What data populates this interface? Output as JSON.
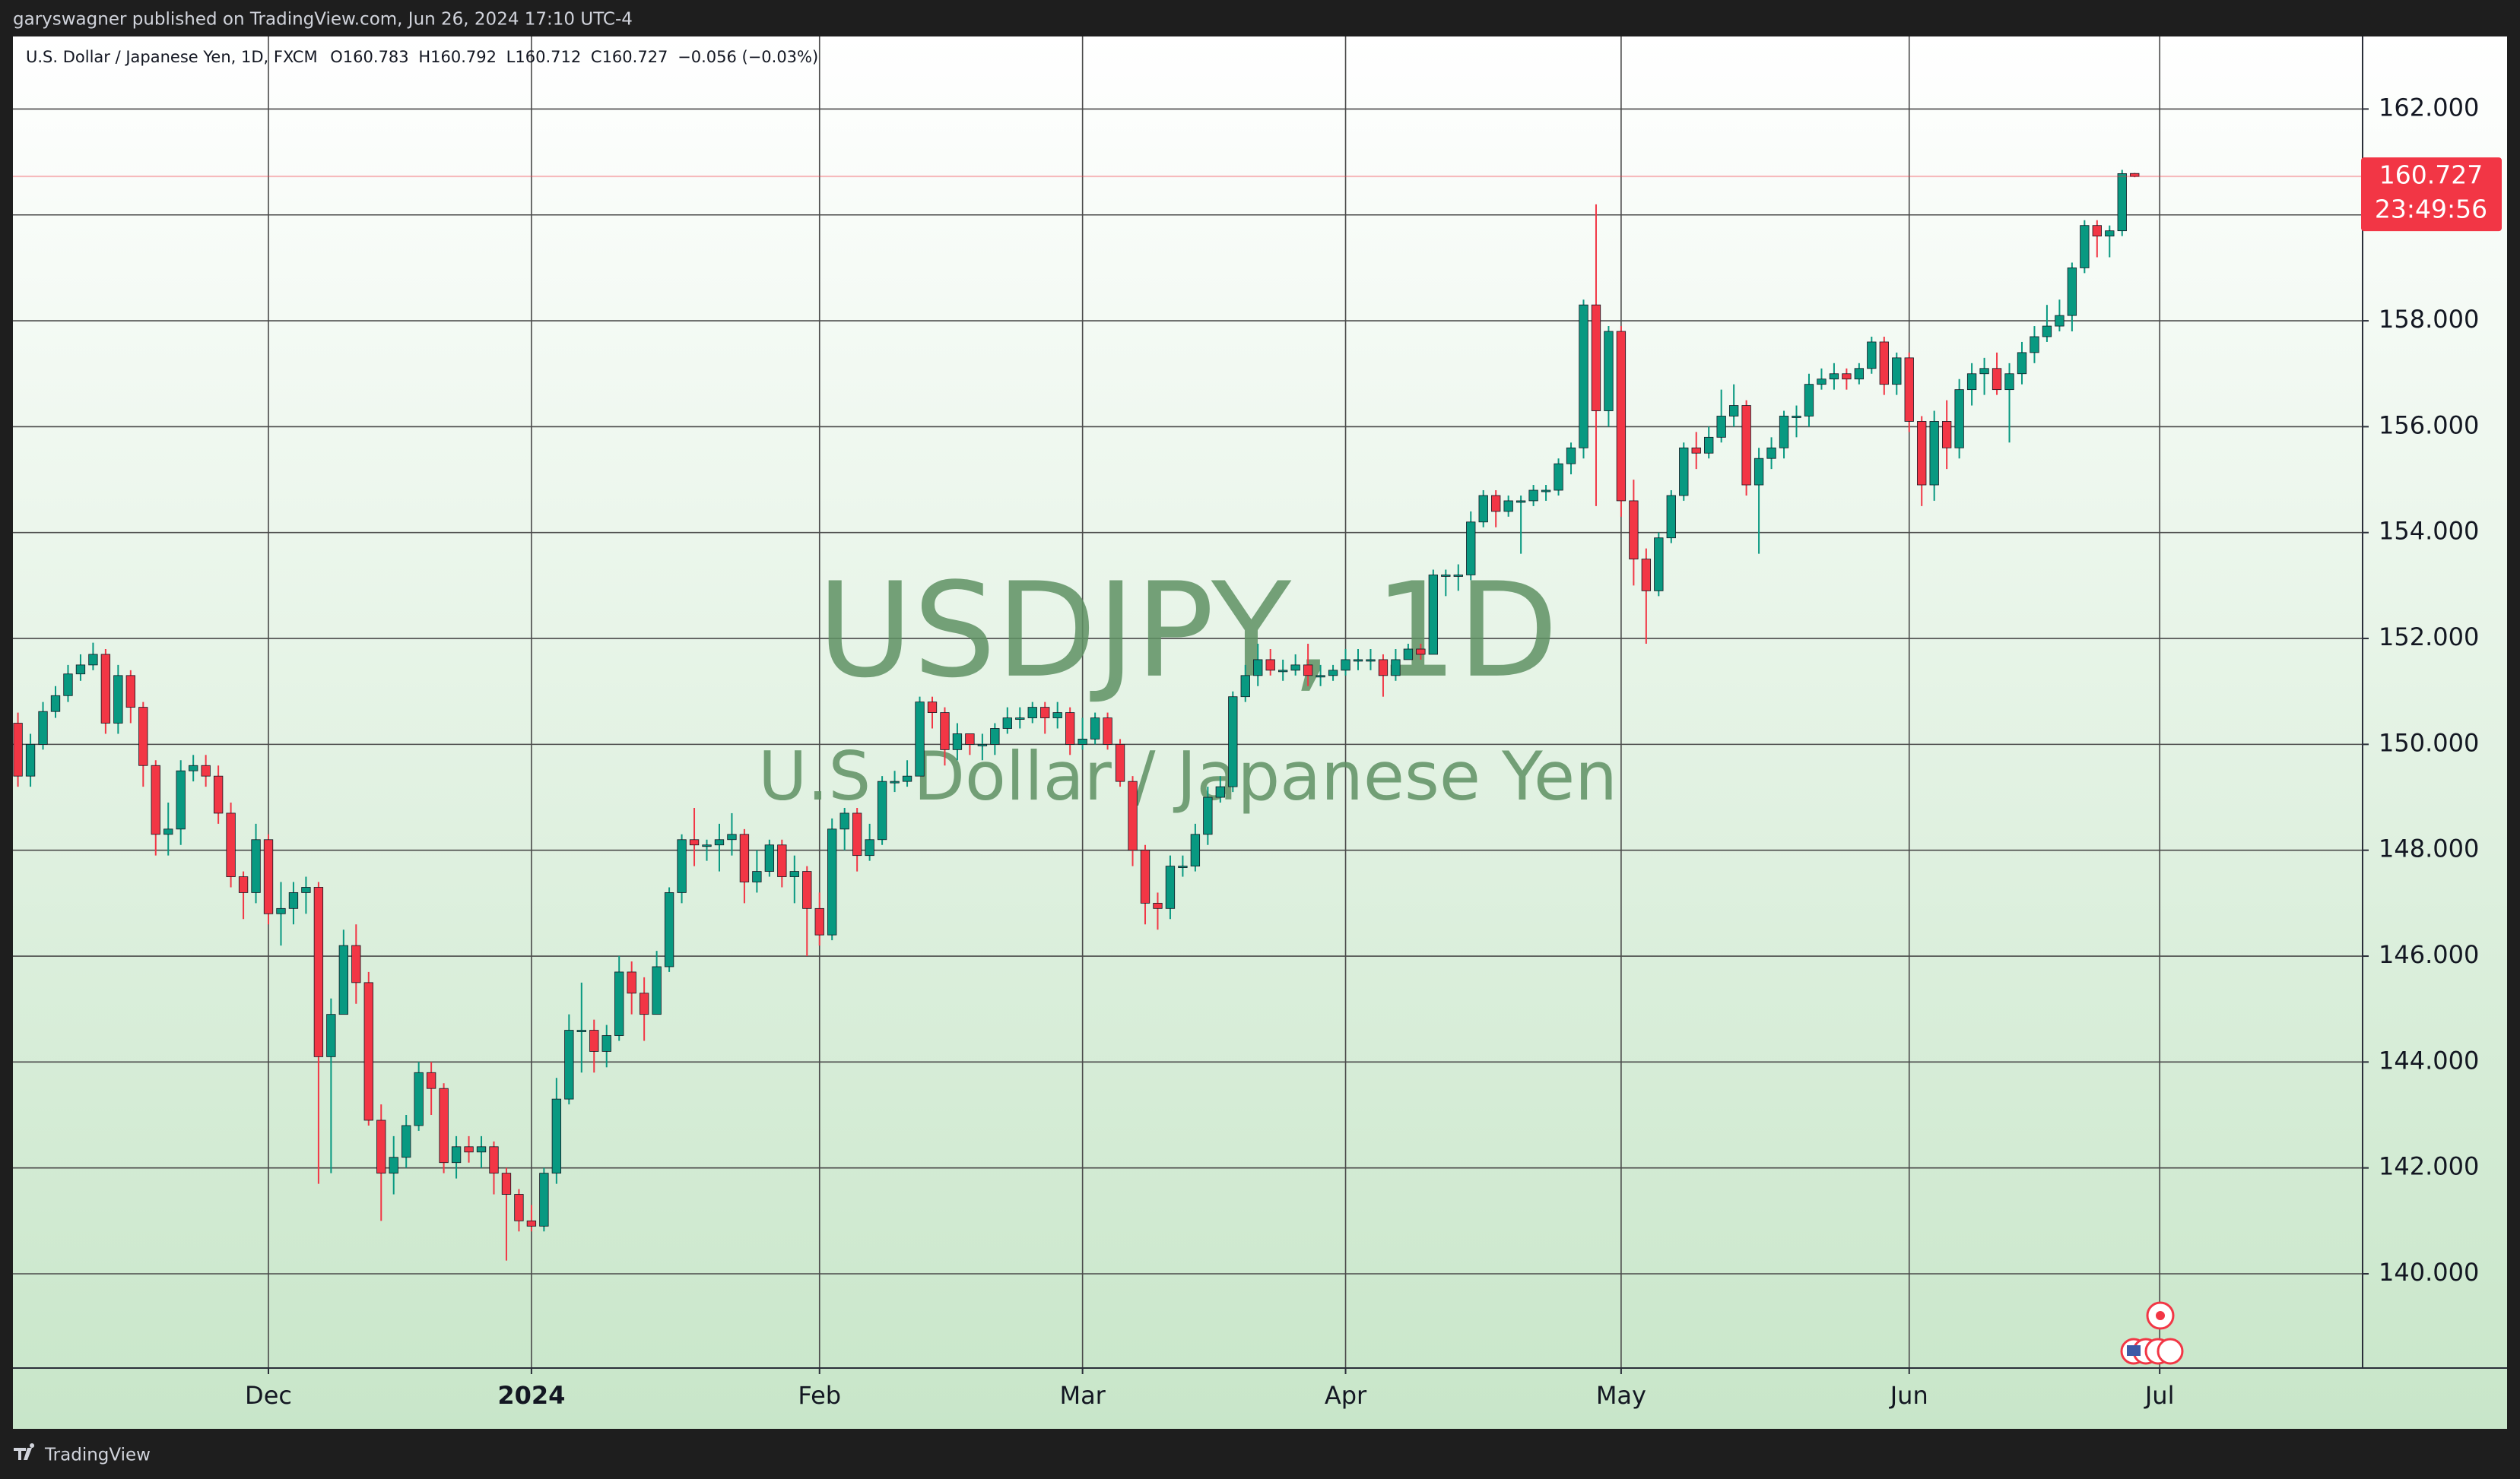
{
  "publisher_line": "garyswagner published on TradingView.com, Jun 26, 2024 17:10 UTC-4",
  "brand": "TradingView",
  "chart_data": {
    "type": "candlestick",
    "header": "U.S. Dollar / Japanese Yen, 1D, FXCM",
    "header_values": [
      "O160.783",
      "H160.792",
      "L160.712",
      "C160.727",
      "−0.056 (−0.03%)"
    ],
    "watermark_symbol": "USDJPY, 1D",
    "watermark_description": "U.S. Dollar /  Japanese Yen",
    "countdown": "23:49:56",
    "up_color": "#089981",
    "down_color": "#f23645",
    "grid": true,
    "ylim": [
      138.22,
      163.37
    ],
    "yticks": [
      {
        "value": 140,
        "label": "140.000"
      },
      {
        "value": 142,
        "label": "142.000"
      },
      {
        "value": 144,
        "label": "144.000"
      },
      {
        "value": 146,
        "label": "146.000"
      },
      {
        "value": 148,
        "label": "148.000"
      },
      {
        "value": 150,
        "label": "150.000"
      },
      {
        "value": 152,
        "label": "152.000"
      },
      {
        "value": 154,
        "label": "154.000"
      },
      {
        "value": 156,
        "label": "156.000"
      },
      {
        "value": 158,
        "label": "158.000"
      },
      {
        "value": 160,
        "label": "160.000"
      },
      {
        "value": 162,
        "label": "162.000"
      }
    ],
    "xlim": [
      -0.4,
      187.2
    ],
    "xticks": [
      {
        "value": 20,
        "label": "Dec"
      },
      {
        "value": 41,
        "label": "2024"
      },
      {
        "value": 64,
        "label": "Feb"
      },
      {
        "value": 85,
        "label": "Mar"
      },
      {
        "value": 106,
        "label": "Apr"
      },
      {
        "value": 128,
        "label": "May"
      },
      {
        "value": 151,
        "label": "Jun"
      },
      {
        "value": 171,
        "label": "Jul"
      }
    ],
    "open": [
      150.4,
      149.4,
      150,
      150.62,
      150.92,
      151.33,
      151.5,
      151.7,
      150.4,
      151.3,
      150.7,
      149.6,
      148.3,
      148.4,
      149.5,
      149.6,
      149.4,
      148.7,
      147.5,
      147.2,
      148.2,
      146.8,
      146.9,
      147.2,
      147.3,
      144.1,
      144.9,
      146.2,
      145.5,
      142.9,
      141.9,
      142.2,
      142.8,
      143.8,
      143.5,
      142.1,
      142.4,
      142.3,
      142.4,
      141.9,
      141.5,
      141,
      140.9,
      141.9,
      143.3,
      144.6,
      144.6,
      144.2,
      144.5,
      145.7,
      145.3,
      144.9,
      145.8,
      147.2,
      148.2,
      148.1,
      148.1,
      148.2,
      148.3,
      147.4,
      147.6,
      148.1,
      147.5,
      147.6,
      146.9,
      146.4,
      148.4,
      148.7,
      147.9,
      148.2,
      149.3,
      149.3,
      149.4,
      150.8,
      150.6,
      149.9,
      150.2,
      150,
      150,
      150.3,
      150.5,
      150.5,
      150.7,
      150.5,
      150.6,
      150,
      150.1,
      150.5,
      150,
      149.3,
      148,
      147,
      146.9,
      147.7,
      147.7,
      148.3,
      149,
      149.2,
      150.9,
      151.3,
      151.6,
      151.4,
      151.4,
      151.5,
      151.3,
      151.3,
      151.4,
      151.6,
      151.6,
      151.6,
      151.3,
      151.6,
      151.8,
      151.7,
      153.2,
      153.2,
      153.2,
      154.2,
      154.7,
      154.4,
      154.6,
      154.6,
      154.8,
      154.8,
      155.3,
      155.6,
      158.3,
      156.3,
      157.8,
      154.6,
      153.5,
      152.9,
      153.9,
      154.7,
      155.6,
      155.5,
      155.8,
      156.2,
      156.4,
      154.9,
      155.4,
      155.6,
      156.2,
      156.2,
      156.8,
      156.9,
      157,
      156.9,
      157.1,
      157.6,
      156.8,
      157.3,
      156.1,
      154.9,
      156.1,
      155.6,
      156.7,
      157,
      157.1,
      156.7,
      157,
      157.4,
      157.7,
      157.9,
      158.1,
      159,
      159.8,
      159.6,
      159.7,
      160.783
    ],
    "high": [
      150.6,
      150.2,
      150.8,
      151.1,
      151.5,
      151.7,
      151.92,
      151.8,
      151.5,
      151.4,
      150.8,
      149.7,
      148.9,
      149.7,
      149.8,
      149.8,
      149.6,
      148.9,
      147.6,
      148.5,
      148.3,
      147.4,
      147.4,
      147.5,
      147.4,
      145.2,
      146.5,
      146.6,
      145.7,
      143.2,
      142.6,
      143,
      144,
      144,
      143.6,
      142.6,
      142.6,
      142.6,
      142.5,
      142,
      141.6,
      141.3,
      142,
      143.7,
      144.9,
      145.5,
      144.8,
      144.7,
      146,
      145.9,
      145.6,
      146.1,
      147.3,
      148.3,
      148.8,
      148.2,
      148.5,
      148.7,
      148.4,
      148,
      148.2,
      148.2,
      147.9,
      147.7,
      147.2,
      148.6,
      148.8,
      148.8,
      148.5,
      149.4,
      149.5,
      149.7,
      150.9,
      150.9,
      150.7,
      150.4,
      150.2,
      150.2,
      150.4,
      150.7,
      150.7,
      150.8,
      150.8,
      150.8,
      150.7,
      150.5,
      150.6,
      150.6,
      150.1,
      149.4,
      148.1,
      147.2,
      147.9,
      147.9,
      148.5,
      149.2,
      149.4,
      151,
      151.5,
      151.9,
      151.8,
      151.6,
      151.7,
      151.9,
      151.5,
      151.5,
      151.8,
      151.8,
      151.8,
      151.7,
      151.8,
      151.9,
      151.9,
      153.3,
      153.3,
      153.4,
      154.4,
      154.8,
      154.8,
      154.7,
      154.7,
      154.9,
      154.9,
      155.4,
      155.7,
      158.4,
      160.2,
      157.9,
      157.9,
      155,
      153.7,
      154,
      154.8,
      155.7,
      155.9,
      156,
      156.7,
      156.8,
      156.5,
      155.6,
      155.8,
      156.3,
      156.4,
      157,
      157.1,
      157.2,
      157.1,
      157.2,
      157.7,
      157.7,
      157.4,
      157.4,
      156.2,
      156.3,
      156.5,
      156.9,
      157.2,
      157.3,
      157.4,
      157.2,
      157.6,
      157.9,
      158.3,
      158.4,
      159.1,
      159.9,
      159.9,
      159.8,
      160.85,
      160.792
    ],
    "low": [
      149.2,
      149.2,
      149.9,
      150.5,
      150.8,
      151.2,
      151.4,
      150.2,
      150.2,
      150.4,
      149.2,
      147.9,
      147.9,
      148.1,
      149.3,
      149.2,
      148.5,
      147.3,
      146.7,
      147,
      146.6,
      146.2,
      146.6,
      146.8,
      141.7,
      141.9,
      144.9,
      145.1,
      142.8,
      141,
      141.5,
      142,
      142.7,
      143,
      141.9,
      141.8,
      142.1,
      142,
      141.5,
      140.25,
      140.8,
      140.8,
      140.8,
      141.7,
      143.2,
      143.8,
      143.8,
      143.9,
      144.4,
      144.9,
      144.4,
      144.9,
      145.7,
      147,
      147.7,
      147.8,
      147.6,
      147.9,
      147,
      147.2,
      147.5,
      147.3,
      147,
      146,
      146.2,
      146.3,
      148,
      147.6,
      147.8,
      148.1,
      149.1,
      149.2,
      149.4,
      150.3,
      149.6,
      149.7,
      149.8,
      149.7,
      149.8,
      150.2,
      150.3,
      150.4,
      150.2,
      150.3,
      149.8,
      149.9,
      150,
      149.9,
      149.2,
      147.7,
      146.6,
      146.5,
      146.7,
      147.5,
      147.6,
      148.1,
      148.9,
      149.1,
      150.8,
      151.1,
      151.3,
      151.2,
      151.3,
      151.1,
      151.1,
      151.2,
      151.3,
      151.4,
      151.4,
      150.9,
      151.2,
      151.6,
      151.6,
      151.7,
      152.8,
      152.9,
      153.1,
      154.1,
      154.1,
      154.3,
      153.6,
      154.5,
      154.6,
      154.7,
      155.1,
      155.4,
      154.5,
      156,
      154.3,
      153,
      151.9,
      152.8,
      153.8,
      154.6,
      155.2,
      155.4,
      155.7,
      156,
      154.7,
      153.6,
      155.2,
      155.4,
      155.8,
      156,
      156.7,
      156.7,
      156.7,
      156.8,
      157,
      156.6,
      156.6,
      155.9,
      154.5,
      154.6,
      155.2,
      155.4,
      156.4,
      156.6,
      156.6,
      155.7,
      156.8,
      157.2,
      157.6,
      157.8,
      157.8,
      158.9,
      159.2,
      159.2,
      159.6,
      160.712
    ],
    "close": [
      149.4,
      150,
      150.62,
      150.92,
      151.33,
      151.5,
      151.7,
      150.4,
      151.3,
      150.7,
      149.6,
      148.3,
      148.4,
      149.5,
      149.6,
      149.4,
      148.7,
      147.5,
      147.2,
      148.2,
      146.8,
      146.9,
      147.2,
      147.3,
      144.1,
      144.9,
      146.2,
      145.5,
      142.9,
      141.9,
      142.2,
      142.8,
      143.8,
      143.5,
      142.1,
      142.4,
      142.3,
      142.4,
      141.9,
      141.5,
      141,
      140.9,
      141.9,
      143.3,
      144.6,
      144.6,
      144.2,
      144.5,
      145.7,
      145.3,
      144.9,
      145.8,
      147.2,
      148.2,
      148.1,
      148.1,
      148.2,
      148.3,
      147.4,
      147.6,
      148.1,
      147.5,
      147.6,
      146.9,
      146.4,
      148.4,
      148.7,
      147.9,
      148.2,
      149.3,
      149.3,
      149.4,
      150.8,
      150.6,
      149.9,
      150.2,
      150,
      150,
      150.3,
      150.5,
      150.5,
      150.7,
      150.5,
      150.6,
      150,
      150.1,
      150.5,
      150,
      149.3,
      148,
      147,
      146.9,
      147.7,
      147.7,
      148.3,
      149,
      149.2,
      150.9,
      151.3,
      151.6,
      151.4,
      151.4,
      151.5,
      151.3,
      151.3,
      151.4,
      151.6,
      151.6,
      151.6,
      151.3,
      151.6,
      151.8,
      151.7,
      153.2,
      153.2,
      153.2,
      154.2,
      154.7,
      154.4,
      154.6,
      154.6,
      154.8,
      154.8,
      155.3,
      155.6,
      158.3,
      156.3,
      157.8,
      154.6,
      153.5,
      152.9,
      153.9,
      154.7,
      155.6,
      155.5,
      155.8,
      156.2,
      156.4,
      154.9,
      155.4,
      155.6,
      156.2,
      156.2,
      156.8,
      156.9,
      157,
      156.9,
      157.1,
      157.6,
      156.8,
      157.3,
      156.1,
      154.9,
      156.1,
      155.6,
      156.7,
      157,
      157.1,
      156.7,
      157,
      157.4,
      157.7,
      157.9,
      158.1,
      159,
      159.8,
      159.6,
      159.7,
      160.78,
      160.727
    ]
  }
}
